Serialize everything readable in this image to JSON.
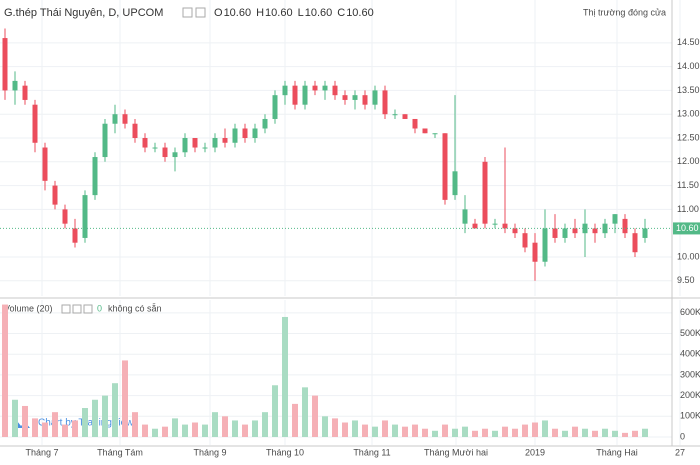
{
  "chart_data": [
    {
      "type": "candlestick",
      "title": "G.thép Thái Nguyên, D, UPCOM",
      "status": "Thị trường đóng cửa",
      "ohlc_legend": [
        {
          "name": "O",
          "value": 10.6,
          "label": "10.60"
        },
        {
          "name": "H",
          "value": 10.6,
          "label": "10.60"
        },
        {
          "name": "L",
          "value": 10.6,
          "label": "10.60"
        },
        {
          "name": "C",
          "value": 10.6,
          "label": "10.60"
        }
      ],
      "open": [
        14.6,
        13.5,
        13.6,
        13.2,
        12.3,
        11.5,
        11.0,
        10.6,
        10.4,
        11.3,
        12.1,
        12.8,
        13.0,
        12.8,
        12.5,
        12.3,
        12.3,
        12.1,
        12.2,
        12.5,
        12.3,
        12.3,
        12.5,
        12.4,
        12.7,
        12.5,
        12.7,
        12.9,
        13.4,
        13.6,
        13.2,
        13.6,
        13.5,
        13.6,
        13.4,
        13.3,
        13.4,
        13.2,
        13.5,
        13.0,
        13.0,
        12.9,
        12.7,
        12.6,
        12.6,
        11.3,
        10.7,
        10.7,
        12.0,
        10.7,
        10.7,
        10.6,
        10.5,
        10.3,
        9.9,
        10.6,
        10.4,
        10.6,
        10.5,
        10.6,
        10.5,
        10.7,
        10.8,
        10.5,
        10.4
      ],
      "high": [
        14.8,
        13.9,
        13.7,
        13.3,
        12.4,
        11.6,
        11.1,
        10.8,
        11.4,
        12.2,
        12.9,
        13.2,
        13.1,
        12.9,
        12.6,
        12.4,
        12.4,
        12.3,
        12.6,
        12.5,
        12.4,
        12.6,
        12.7,
        12.8,
        12.8,
        12.8,
        13.0,
        13.5,
        13.7,
        13.7,
        13.7,
        13.7,
        13.7,
        13.7,
        13.5,
        13.5,
        13.5,
        13.6,
        13.6,
        13.1,
        13.0,
        12.9,
        12.7,
        12.6,
        12.6,
        13.4,
        11.3,
        10.8,
        12.1,
        10.8,
        12.3,
        10.7,
        10.6,
        10.5,
        11.0,
        10.9,
        10.7,
        10.8,
        11.0,
        10.7,
        10.8,
        10.9,
        10.9,
        10.6,
        10.8
      ],
      "low": [
        13.3,
        13.2,
        13.2,
        12.2,
        11.4,
        11.0,
        10.6,
        10.2,
        10.3,
        11.2,
        12.0,
        12.6,
        12.7,
        12.4,
        12.2,
        12.2,
        12.0,
        11.8,
        12.1,
        12.2,
        12.2,
        12.2,
        12.3,
        12.3,
        12.4,
        12.4,
        12.6,
        12.8,
        13.2,
        13.1,
        13.1,
        13.4,
        13.3,
        13.3,
        13.2,
        13.1,
        13.1,
        13.1,
        12.9,
        12.9,
        12.9,
        12.6,
        12.6,
        12.5,
        11.1,
        11.2,
        10.5,
        10.6,
        10.6,
        10.6,
        10.5,
        10.4,
        10.1,
        9.5,
        9.8,
        10.3,
        10.3,
        10.4,
        10.0,
        10.3,
        10.4,
        10.5,
        10.4,
        10.0,
        10.3
      ],
      "close": [
        13.5,
        13.7,
        13.3,
        12.4,
        11.6,
        11.1,
        10.7,
        10.3,
        11.3,
        12.1,
        12.8,
        13.0,
        12.8,
        12.5,
        12.3,
        12.3,
        12.1,
        12.2,
        12.5,
        12.3,
        12.3,
        12.5,
        12.4,
        12.7,
        12.5,
        12.7,
        12.9,
        13.4,
        13.6,
        13.2,
        13.6,
        13.5,
        13.6,
        13.4,
        13.3,
        13.4,
        13.2,
        13.5,
        13.0,
        13.0,
        12.9,
        12.7,
        12.6,
        12.6,
        11.2,
        11.8,
        11.0,
        10.6,
        10.7,
        10.7,
        10.6,
        10.5,
        10.2,
        9.9,
        10.6,
        10.4,
        10.6,
        10.5,
        10.7,
        10.5,
        10.7,
        10.9,
        10.5,
        10.1,
        10.6
      ],
      "up_color": "#53b987",
      "down_color": "#eb4d5c",
      "xlim": [
        0,
        70
      ],
      "xticks": [
        {
          "value": 4.2,
          "label": "Tháng 7"
        },
        {
          "value": 12.0,
          "label": "Tháng Tám"
        },
        {
          "value": 21.0,
          "label": "Tháng 9"
        },
        {
          "value": 28.5,
          "label": "Tháng 10"
        },
        {
          "value": 37.2,
          "label": "Tháng 11"
        },
        {
          "value": 45.6,
          "label": "Tháng Mười hai"
        },
        {
          "value": 53.5,
          "label": "2019"
        },
        {
          "value": 61.7,
          "label": "Tháng Hai"
        },
        {
          "value": 68,
          "label": "27"
        }
      ],
      "ylim": [
        9.18,
        15.4
      ],
      "yticks": [
        {
          "value": 9.5,
          "label": "9.50"
        },
        {
          "value": 10,
          "label": "10.00"
        },
        {
          "value": 11,
          "label": "11.00"
        },
        {
          "value": 11.5,
          "label": "11.50"
        },
        {
          "value": 12,
          "label": "12.00"
        },
        {
          "value": 12.5,
          "label": "12.50"
        },
        {
          "value": 13,
          "label": "13.00"
        },
        {
          "value": 13.5,
          "label": "13.50"
        },
        {
          "value": 14,
          "label": "14.00"
        },
        {
          "value": 14.5,
          "label": "14.50"
        }
      ],
      "last_price": {
        "value": 10.6,
        "label": "10.60"
      },
      "grid": true
    },
    {
      "type": "bar",
      "title": "Volume (20)",
      "legend_value": 0,
      "legend_note": "không có sẵn",
      "values": [
        640000,
        180000,
        150000,
        90000,
        70000,
        120000,
        60000,
        80000,
        140000,
        180000,
        200000,
        260000,
        370000,
        120000,
        60000,
        40000,
        50000,
        90000,
        60000,
        70000,
        60000,
        120000,
        100000,
        80000,
        60000,
        80000,
        120000,
        250000,
        580000,
        160000,
        240000,
        200000,
        100000,
        90000,
        70000,
        80000,
        60000,
        50000,
        80000,
        60000,
        50000,
        60000,
        40000,
        30000,
        60000,
        40000,
        50000,
        30000,
        40000,
        30000,
        50000,
        40000,
        60000,
        70000,
        80000,
        40000,
        30000,
        50000,
        40000,
        30000,
        40000,
        30000,
        20000,
        30000,
        40000
      ],
      "up_color": "#a9dcc3",
      "down_color": "#f5b0b6",
      "ylim": [
        0,
        662000
      ],
      "yticks": [
        0,
        {
          "value": 100000,
          "label": "100K"
        },
        {
          "value": 200000,
          "label": "200K"
        },
        {
          "value": 300000,
          "label": "300K"
        },
        {
          "value": 400000,
          "label": "400K"
        },
        {
          "value": 500000,
          "label": "500K"
        },
        {
          "value": 600000,
          "label": "600K"
        }
      ],
      "grid": true
    }
  ],
  "watermark": "Chart by TradingView"
}
